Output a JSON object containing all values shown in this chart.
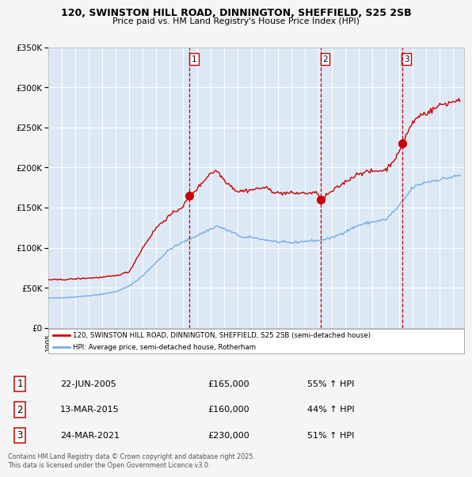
{
  "title_line1": "120, SWINSTON HILL ROAD, DINNINGTON, SHEFFIELD, S25 2SB",
  "title_line2": "Price paid vs. HM Land Registry's House Price Index (HPI)",
  "red_label": "120, SWINSTON HILL ROAD, DINNINGTON, SHEFFIELD, S25 2SB (semi-detached house)",
  "blue_label": "HPI: Average price, semi-detached house, Rotherham",
  "footer": "Contains HM Land Registry data © Crown copyright and database right 2025.\nThis data is licensed under the Open Government Licence v3.0.",
  "transactions": [
    {
      "num": 1,
      "date": "22-JUN-2005",
      "price": 165000,
      "hpi_pct": "55% ↑ HPI",
      "year": 2005.47
    },
    {
      "num": 2,
      "date": "13-MAR-2015",
      "price": 160000,
      "hpi_pct": "44% ↑ HPI",
      "year": 2015.19
    },
    {
      "num": 3,
      "date": "24-MAR-2021",
      "price": 230000,
      "hpi_pct": "51% ↑ HPI",
      "year": 2021.22
    }
  ],
  "bg_color": "#dce9f5",
  "fig_bg_color": "#f5f5f5",
  "red_color": "#cc0000",
  "blue_color": "#7aace0",
  "grid_color": "#ffffff",
  "vline_color": "#cc0000",
  "ylim": [
    0,
    350000
  ],
  "xlim_start": 1995.0,
  "xlim_end": 2025.8,
  "hpi_keypoints": [
    [
      1995.0,
      37000
    ],
    [
      1996.0,
      37500
    ],
    [
      1997.0,
      38500
    ],
    [
      1998.0,
      40000
    ],
    [
      1999.0,
      42000
    ],
    [
      2000.0,
      45000
    ],
    [
      2001.0,
      52000
    ],
    [
      2002.0,
      65000
    ],
    [
      2003.0,
      82000
    ],
    [
      2004.0,
      98000
    ],
    [
      2005.0,
      107000
    ],
    [
      2006.0,
      115000
    ],
    [
      2007.5,
      127000
    ],
    [
      2008.5,
      120000
    ],
    [
      2009.5,
      112000
    ],
    [
      2010.0,
      113000
    ],
    [
      2011.0,
      110000
    ],
    [
      2012.0,
      107000
    ],
    [
      2013.0,
      106000
    ],
    [
      2014.0,
      108000
    ],
    [
      2015.0,
      109000
    ],
    [
      2016.0,
      112000
    ],
    [
      2017.0,
      120000
    ],
    [
      2018.0,
      128000
    ],
    [
      2019.0,
      132000
    ],
    [
      2020.0,
      135000
    ],
    [
      2021.0,
      152000
    ],
    [
      2022.0,
      175000
    ],
    [
      2023.0,
      182000
    ],
    [
      2024.0,
      185000
    ],
    [
      2025.5,
      190000
    ]
  ],
  "price_keypoints": [
    [
      1995.0,
      60000
    ],
    [
      1996.0,
      60000
    ],
    [
      1997.0,
      61000
    ],
    [
      1998.0,
      62000
    ],
    [
      1999.0,
      63000
    ],
    [
      2000.0,
      65000
    ],
    [
      2001.0,
      70000
    ],
    [
      2002.0,
      100000
    ],
    [
      2003.0,
      125000
    ],
    [
      2004.0,
      140000
    ],
    [
      2005.0,
      152000
    ],
    [
      2005.47,
      165000
    ],
    [
      2006.0,
      173000
    ],
    [
      2007.0,
      193000
    ],
    [
      2007.5,
      196000
    ],
    [
      2008.0,
      185000
    ],
    [
      2009.0,
      170000
    ],
    [
      2010.0,
      172000
    ],
    [
      2011.0,
      175000
    ],
    [
      2012.0,
      168000
    ],
    [
      2013.0,
      168000
    ],
    [
      2014.0,
      168000
    ],
    [
      2015.0,
      168000
    ],
    [
      2015.19,
      160000
    ],
    [
      2016.0,
      170000
    ],
    [
      2017.0,
      182000
    ],
    [
      2018.0,
      193000
    ],
    [
      2019.0,
      195000
    ],
    [
      2020.0,
      197000
    ],
    [
      2021.0,
      218000
    ],
    [
      2021.22,
      230000
    ],
    [
      2021.5,
      240000
    ],
    [
      2022.0,
      256000
    ],
    [
      2022.5,
      265000
    ],
    [
      2023.0,
      268000
    ],
    [
      2023.5,
      272000
    ],
    [
      2024.0,
      278000
    ],
    [
      2024.5,
      280000
    ],
    [
      2025.0,
      282000
    ],
    [
      2025.5,
      286000
    ]
  ]
}
